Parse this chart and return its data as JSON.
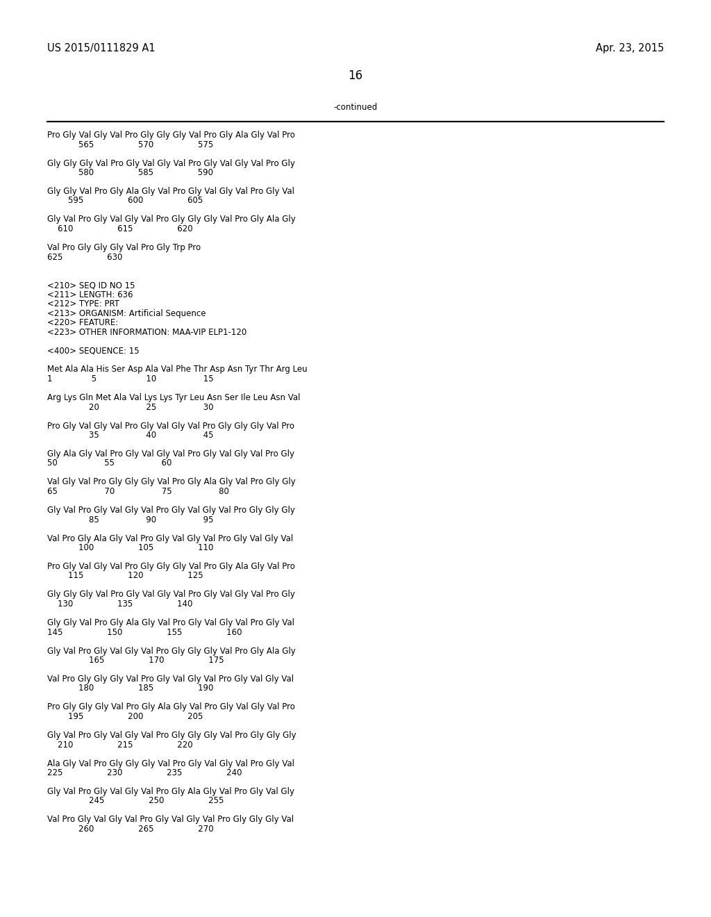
{
  "header_left": "US 2015/0111829 A1",
  "header_right": "Apr. 23, 2015",
  "page_number": "16",
  "continued_label": "-continued",
  "background_color": "#ffffff",
  "text_color": "#000000",
  "font_size": 8.5,
  "header_font_size": 10.5,
  "page_num_font_size": 12,
  "lines": [
    "Pro Gly Val Gly Val Pro Gly Gly Gly Val Pro Gly Ala Gly Val Pro",
    "            565                 570                 575",
    "",
    "Gly Gly Gly Val Pro Gly Val Gly Val Pro Gly Val Gly Val Pro Gly",
    "            580                 585                 590",
    "",
    "Gly Gly Val Pro Gly Ala Gly Val Pro Gly Val Gly Val Pro Gly Val",
    "        595                 600                 605",
    "",
    "Gly Val Pro Gly Val Gly Val Pro Gly Gly Gly Val Pro Gly Ala Gly",
    "    610                 615                 620",
    "",
    "Val Pro Gly Gly Gly Val Pro Gly Trp Pro",
    "625                 630",
    "",
    "",
    "<210> SEQ ID NO 15",
    "<211> LENGTH: 636",
    "<212> TYPE: PRT",
    "<213> ORGANISM: Artificial Sequence",
    "<220> FEATURE:",
    "<223> OTHER INFORMATION: MAA-VIP ELP1-120",
    "",
    "<400> SEQUENCE: 15",
    "",
    "Met Ala Ala His Ser Asp Ala Val Phe Thr Asp Asn Tyr Thr Arg Leu",
    "1               5                   10                  15",
    "",
    "Arg Lys Gln Met Ala Val Lys Lys Tyr Leu Asn Ser Ile Leu Asn Val",
    "                20                  25                  30",
    "",
    "Pro Gly Val Gly Val Pro Gly Val Gly Val Pro Gly Gly Gly Val Pro",
    "                35                  40                  45",
    "",
    "Gly Ala Gly Val Pro Gly Val Gly Val Pro Gly Val Gly Val Pro Gly",
    "50                  55                  60",
    "",
    "Val Gly Val Pro Gly Gly Gly Val Pro Gly Ala Gly Val Pro Gly Gly",
    "65                  70                  75                  80",
    "",
    "Gly Val Pro Gly Val Gly Val Pro Gly Val Gly Val Pro Gly Gly Gly",
    "                85                  90                  95",
    "",
    "Val Pro Gly Ala Gly Val Pro Gly Val Gly Val Pro Gly Val Gly Val",
    "            100                 105                 110",
    "",
    "Pro Gly Val Gly Val Pro Gly Gly Gly Val Pro Gly Ala Gly Val Pro",
    "        115                 120                 125",
    "",
    "Gly Gly Gly Val Pro Gly Val Gly Val Pro Gly Val Gly Val Pro Gly",
    "    130                 135                 140",
    "",
    "Gly Gly Val Pro Gly Ala Gly Val Pro Gly Val Gly Val Pro Gly Val",
    "145                 150                 155                 160",
    "",
    "Gly Val Pro Gly Val Gly Val Pro Gly Gly Gly Val Pro Gly Ala Gly",
    "                165                 170                 175",
    "",
    "Val Pro Gly Gly Gly Val Pro Gly Val Gly Val Pro Gly Val Gly Val",
    "            180                 185                 190",
    "",
    "Pro Gly Gly Gly Val Pro Gly Ala Gly Val Pro Gly Val Gly Val Pro",
    "        195                 200                 205",
    "",
    "Gly Val Pro Gly Val Gly Val Pro Gly Gly Gly Val Pro Gly Gly Gly",
    "    210                 215                 220",
    "",
    "Ala Gly Val Pro Gly Gly Gly Val Pro Gly Val Gly Val Pro Gly Val",
    "225                 230                 235                 240",
    "",
    "Gly Val Pro Gly Val Gly Val Pro Gly Ala Gly Val Pro Gly Val Gly",
    "                245                 250                 255",
    "",
    "Val Pro Gly Val Gly Val Pro Gly Val Gly Val Pro Gly Gly Gly Val",
    "            260                 265                 270"
  ]
}
